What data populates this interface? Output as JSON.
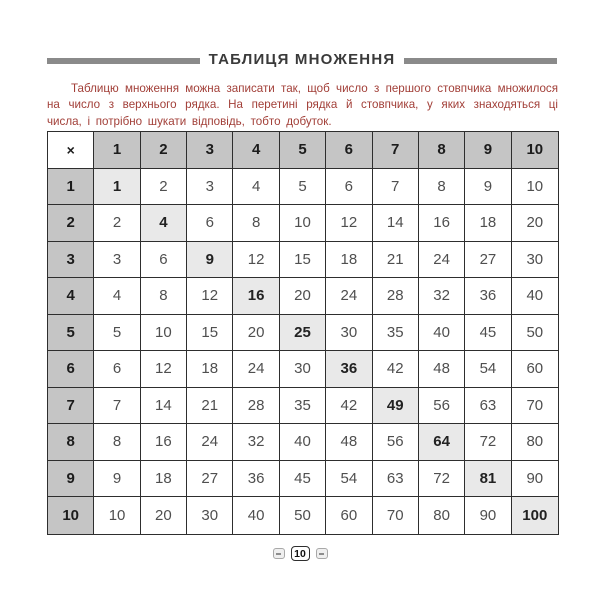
{
  "page": {
    "title": "ТАБЛИЦЯ  МНОЖЕННЯ",
    "intro": "Таблицю множення можна записати так, щоб число з першого стовпчика множилося на число з верхнього рядка. На перетині рядка й стовпчика, у яких знаходяться ці числа, і потрібно шукати відповідь, тобто добуток.",
    "page_number": "10"
  },
  "table": {
    "corner_label": "×",
    "column_headers": [
      "1",
      "2",
      "3",
      "4",
      "5",
      "6",
      "7",
      "8",
      "9",
      "10"
    ],
    "row_headers": [
      "1",
      "2",
      "3",
      "4",
      "5",
      "6",
      "7",
      "8",
      "9",
      "10"
    ],
    "rows": [
      [
        1,
        2,
        3,
        4,
        5,
        6,
        7,
        8,
        9,
        10
      ],
      [
        2,
        4,
        6,
        8,
        10,
        12,
        14,
        16,
        18,
        20
      ],
      [
        3,
        6,
        9,
        12,
        15,
        18,
        21,
        24,
        27,
        30
      ],
      [
        4,
        8,
        12,
        16,
        20,
        24,
        28,
        32,
        36,
        40
      ],
      [
        5,
        10,
        15,
        20,
        25,
        30,
        35,
        40,
        45,
        50
      ],
      [
        6,
        12,
        18,
        24,
        30,
        36,
        42,
        48,
        54,
        60
      ],
      [
        7,
        14,
        21,
        28,
        35,
        42,
        49,
        56,
        63,
        70
      ],
      [
        8,
        16,
        24,
        32,
        40,
        48,
        56,
        64,
        72,
        80
      ],
      [
        9,
        18,
        27,
        36,
        45,
        54,
        63,
        72,
        81,
        90
      ],
      [
        10,
        20,
        30,
        40,
        50,
        60,
        70,
        80,
        90,
        100
      ]
    ],
    "highlight_rule": "diagonal squares highlighted"
  },
  "colors": {
    "header_bg": "#c5c5c5",
    "diagonal_bg": "#e9e9e9",
    "grid_border": "#2e2e2e",
    "intro_text": "#a23f38",
    "title_rule": "#8a8a8a",
    "title_text": "#3a3a3a"
  }
}
